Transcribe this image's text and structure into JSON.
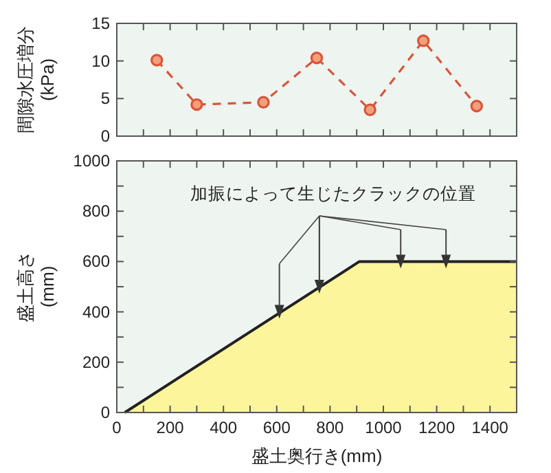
{
  "chart_data": [
    {
      "type": "line",
      "ylabel": "間隙水圧増分\n(kPa)",
      "x": [
        150,
        300,
        550,
        750,
        950,
        1150,
        1350
      ],
      "series": [
        {
          "color": "#d9553a",
          "values": [
            10.1,
            4.2,
            4.5,
            10.4,
            3.5,
            12.7,
            4.0
          ]
        }
      ],
      "marker": "circle",
      "line_style": "dashed",
      "grid": false,
      "tick_labels": "y",
      "xlim": [
        0,
        1500
      ],
      "xticks": [
        {
          "value": 0,
          "label": null
        },
        {
          "value": 100,
          "label": null
        },
        {
          "value": 200,
          "label": null
        },
        {
          "value": 300,
          "label": null
        },
        {
          "value": 400,
          "label": null
        },
        {
          "value": 500,
          "label": null
        },
        {
          "value": 600,
          "label": null
        },
        {
          "value": 700,
          "label": null
        },
        {
          "value": 800,
          "label": null
        },
        {
          "value": 900,
          "label": null
        },
        {
          "value": 1000,
          "label": null
        },
        {
          "value": 1100,
          "label": null
        },
        {
          "value": 1200,
          "label": null
        },
        {
          "value": 1300,
          "label": null
        },
        {
          "value": 1400,
          "label": null
        },
        {
          "value": 1500,
          "label": null
        }
      ],
      "ylim": [
        0,
        15
      ],
      "yticks": [
        0,
        5,
        10,
        15
      ]
    },
    {
      "type": "area",
      "xlabel": "盛土奥行き(mm)",
      "ylabel": "盛土高さ\n(mm)",
      "annotations": [
        {
          "text": "加振によって生じたクラックの位置",
          "x": 760,
          "y": 500
        }
      ],
      "series": [
        {
          "color": "#fcf59c",
          "x": [
            30,
            910,
            1500
          ],
          "values": [
            0,
            600,
            600
          ]
        },
        {
          "type": "scatter",
          "color": "#333333",
          "marker": "triangle",
          "x": [
            610,
            760,
            1065,
            1235
          ],
          "values": [
            400,
            500,
            600,
            600
          ]
        }
      ],
      "grid": false,
      "xlim": [
        0,
        1500
      ],
      "xticks": [
        0,
        {
          "value": 100,
          "label": null
        },
        200,
        {
          "value": 300,
          "label": null
        },
        400,
        {
          "value": 500,
          "label": null
        },
        600,
        {
          "value": 700,
          "label": null
        },
        800,
        {
          "value": 900,
          "label": null
        },
        1000,
        {
          "value": 1100,
          "label": null
        },
        1200,
        {
          "value": 1300,
          "label": null
        },
        1400,
        {
          "value": 1500,
          "label": null
        }
      ],
      "ylim": [
        0,
        1000
      ],
      "yticks": [
        0,
        {
          "value": 100,
          "label": null
        },
        200,
        {
          "value": 300,
          "label": null
        },
        400,
        {
          "value": 500,
          "label": null
        },
        600,
        {
          "value": 700,
          "label": null
        },
        800,
        {
          "value": 900,
          "label": null
        },
        1000
      ]
    }
  ]
}
